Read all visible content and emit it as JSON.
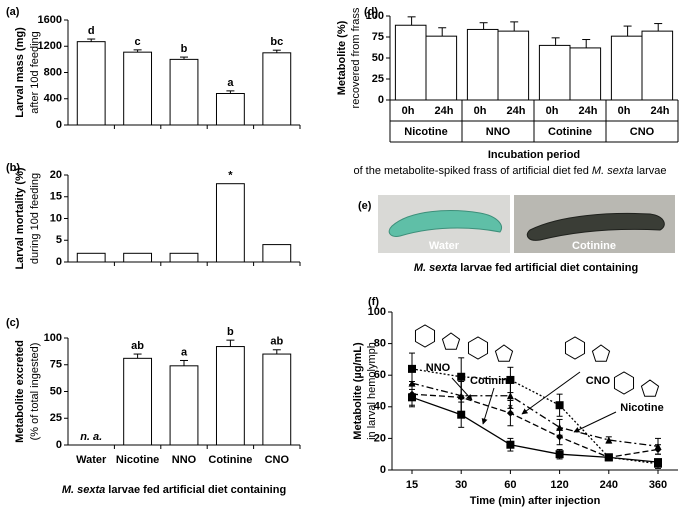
{
  "chart_data": [
    {
      "panel": "(a)",
      "type": "bar",
      "ylabel": "Larval mass (mg)",
      "ysublabel": "after 10d feeding",
      "values": [
        1270,
        1110,
        1000,
        480,
        1100
      ],
      "errors": [
        40,
        35,
        35,
        40,
        40
      ],
      "annotations": [
        "d",
        "c",
        "b",
        "a",
        "bc"
      ],
      "ylim": [
        0,
        1600
      ],
      "yticks": [
        0,
        400,
        800,
        1200,
        1600
      ],
      "color": "#ffffff"
    },
    {
      "panel": "(b)",
      "type": "bar",
      "ylabel": "Larval mortality (%)",
      "ysublabel": "during 10d feeding",
      "values": [
        2,
        2,
        2,
        18,
        4
      ],
      "annotations": [
        null,
        null,
        null,
        "*",
        null
      ],
      "ylim": [
        0,
        20
      ],
      "yticks": [
        0,
        5,
        10,
        15,
        20
      ],
      "color": "#ffffff"
    },
    {
      "panel": "(c)",
      "type": "bar",
      "ylabel": "Metabolite excreted",
      "ysublabel": "(% of total ingested)",
      "categories": [
        "Water",
        "Nicotine",
        "NNO",
        "Cotinine",
        "CNO"
      ],
      "values": [
        null,
        81,
        74,
        92,
        85
      ],
      "errors": [
        null,
        4,
        5,
        6,
        4
      ],
      "annotations": [
        null,
        "ab",
        "a",
        "b",
        "ab"
      ],
      "missing_label": "n. a.",
      "xlabel_species": "M. sexta",
      "xlabel": "larvae fed artificial diet containing",
      "ylim": [
        0,
        100
      ],
      "yticks": [
        0,
        25,
        50,
        75,
        100
      ],
      "color": "#ffffff"
    },
    {
      "panel": "(d)",
      "type": "grouped_bar",
      "ylabel": "Metabolite (%)",
      "ysublabel": "recovered from frass",
      "groups": [
        "Nicotine",
        "NNO",
        "Cotinine",
        "CNO"
      ],
      "categories": [
        "0h",
        "24h",
        "0h",
        "24h",
        "0h",
        "24h",
        "0h",
        "24h"
      ],
      "values": [
        89,
        76,
        84,
        82,
        65,
        62,
        76,
        82
      ],
      "errors": [
        10,
        10,
        8,
        11,
        9,
        10,
        12,
        9
      ],
      "xlabel": "Incubation period",
      "subtitle_before": "of the metabolite-spiked frass of artificial diet fed",
      "subtitle_species": "M. sexta",
      "subtitle_after": "larvae",
      "ylim": [
        0,
        100
      ],
      "yticks": [
        0,
        25,
        50,
        75,
        100
      ],
      "color": "#ffffff"
    },
    {
      "panel": "(f)",
      "type": "line",
      "ylabel": "Metabolite (µg/mL)",
      "ysublabel": "in larval hemolymph",
      "categories": [
        15,
        30,
        60,
        120,
        240,
        360
      ],
      "xlabel": "Time (min) after injection",
      "series": [
        {
          "name": "NNO",
          "color": "#000000",
          "line_style": "dotted",
          "marker": "square",
          "values": [
            64,
            59,
            57,
            41,
            8,
            4
          ],
          "errors": [
            10,
            12,
            8,
            7,
            2,
            3
          ]
        },
        {
          "name": "Cotinine",
          "color": "#000000",
          "line_style": "dashdot",
          "marker": "triangle",
          "values": [
            55,
            47,
            47,
            27,
            19,
            15
          ],
          "errors": [
            9,
            10,
            8,
            5,
            2,
            5
          ]
        },
        {
          "name": "CNO",
          "color": "#000000",
          "line_style": "dashed",
          "marker": "diamond",
          "values": [
            48,
            46,
            36,
            21,
            8,
            13
          ],
          "errors": [
            8,
            10,
            8,
            5,
            2,
            3
          ]
        },
        {
          "name": "Nicotine",
          "color": "#000000",
          "line_style": "solid",
          "marker": "square",
          "values": [
            46,
            35,
            16,
            10,
            8,
            5
          ],
          "errors": [
            5,
            8,
            4,
            3,
            2,
            2
          ]
        }
      ],
      "annotations": [
        {
          "x": 60,
          "text": "*"
        },
        {
          "x": 120,
          "text": "*"
        }
      ],
      "ylim": [
        0,
        100
      ],
      "yticks": [
        0,
        20,
        40,
        60,
        80,
        100
      ]
    }
  ],
  "panel_e": {
    "panel": "(e)",
    "captions": [
      "Water",
      "Cotinine"
    ],
    "title_species": "M. sexta",
    "title": "larvae fed artificial diet containing"
  }
}
